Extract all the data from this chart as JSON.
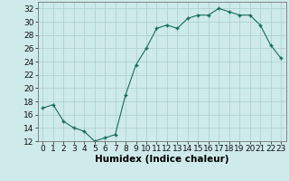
{
  "x": [
    0,
    1,
    2,
    3,
    4,
    5,
    6,
    7,
    8,
    9,
    10,
    11,
    12,
    13,
    14,
    15,
    16,
    17,
    18,
    19,
    20,
    21,
    22,
    23
  ],
  "y": [
    17,
    17.5,
    15,
    14,
    13.5,
    12,
    12.5,
    13,
    19,
    23.5,
    26,
    29,
    29.5,
    29,
    30.5,
    31,
    31,
    32,
    31.5,
    31,
    31,
    29.5,
    26.5,
    24.5
  ],
  "line_color": "#1a6b5a",
  "marker_color": "#1a6b5a",
  "bg_color": "#ceeaea",
  "grid_color": "#aacece",
  "xlabel": "Humidex (Indice chaleur)",
  "ylabel": "",
  "xlim": [
    -0.5,
    23.5
  ],
  "ylim": [
    12,
    33
  ],
  "yticks": [
    12,
    14,
    16,
    18,
    20,
    22,
    24,
    26,
    28,
    30,
    32
  ],
  "xticks": [
    0,
    1,
    2,
    3,
    4,
    5,
    6,
    7,
    8,
    9,
    10,
    11,
    12,
    13,
    14,
    15,
    16,
    17,
    18,
    19,
    20,
    21,
    22,
    23
  ],
  "xlabel_fontsize": 7.5,
  "tick_fontsize": 6.5
}
